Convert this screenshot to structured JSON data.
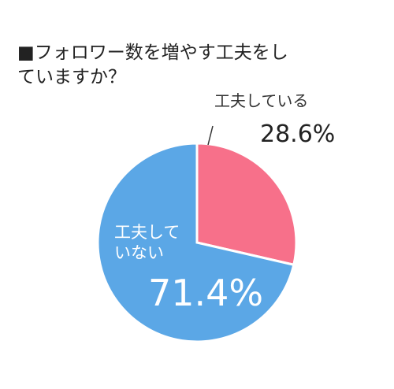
{
  "chart_data": {
    "type": "pie",
    "title": "■フォロワー数を増やす工夫をしていますか？",
    "categories": [
      "工夫している",
      "工夫していない"
    ],
    "values": [
      28.6,
      71.4
    ],
    "value_labels": [
      "28.6%",
      "71.4%"
    ],
    "colors": [
      "#f7708a",
      "#5ba7e6"
    ]
  }
}
